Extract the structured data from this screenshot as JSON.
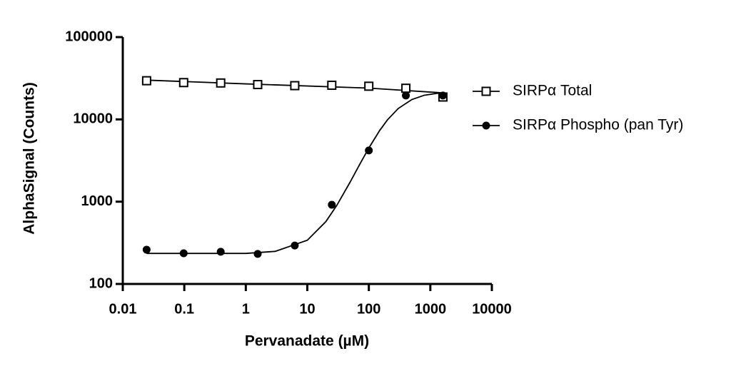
{
  "chart_data": {
    "type": "scatter",
    "xlabel": "Pervanadate (µM)",
    "ylabel": "AlphaSignal (Counts)",
    "xscale": "log",
    "yscale": "log",
    "xlim": [
      0.01,
      10000
    ],
    "xticks": [
      0.01,
      0.1,
      1,
      10,
      100,
      1000,
      10000
    ],
    "ylim": [
      100,
      100000
    ],
    "yticks": [
      100,
      1000,
      10000,
      100000
    ],
    "series": [
      {
        "name": "SIRPα Total",
        "color": "#000000",
        "marker": "open-square",
        "x": [
          0.0244,
          0.0977,
          0.391,
          1.56,
          6.25,
          25,
          100,
          400,
          1600
        ],
        "values": [
          29500,
          28000,
          27700,
          26500,
          25700,
          26000,
          25300,
          23900,
          18700
        ],
        "fit": {
          "x": [
            0.0244,
            1,
            100,
            1600
          ],
          "values": [
            30000,
            27000,
            24000,
            21000
          ]
        }
      },
      {
        "name": "SIRPα Phospho (pan Tyr)",
        "color": "#000000",
        "marker": "filled-circle",
        "x": [
          0.0244,
          0.0977,
          0.391,
          1.56,
          6.25,
          25,
          100,
          400,
          1600
        ],
        "values": [
          261,
          236,
          246,
          232,
          293,
          918,
          4190,
          19500,
          19500
        ],
        "fit": {
          "x": [
            0.0244,
            1,
            3,
            10,
            20,
            30,
            50,
            70,
            100,
            150,
            200,
            300,
            500,
            800,
            1600
          ],
          "values": [
            235,
            235,
            249,
            340,
            572,
            896,
            1746,
            2778,
            4486,
            7325,
            9832,
            13531,
            17413,
            19668,
            21223
          ]
        }
      }
    ]
  }
}
